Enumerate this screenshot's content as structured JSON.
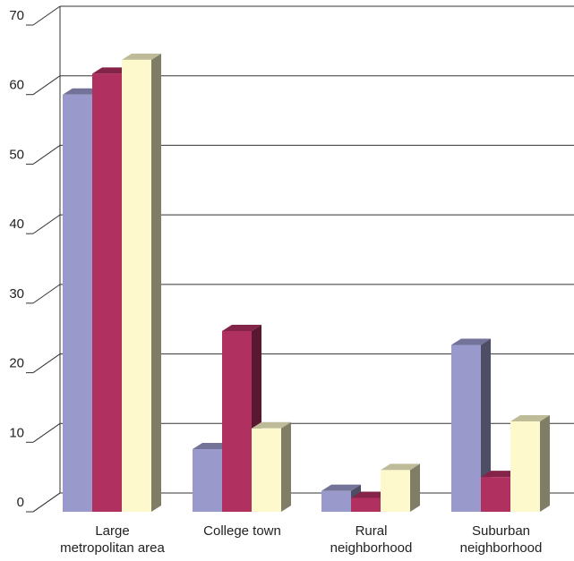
{
  "chart_data": {
    "type": "bar",
    "title": "",
    "xlabel": "",
    "ylabel": "",
    "categories": [
      [
        "Large",
        "metropolitan area"
      ],
      [
        "College town"
      ],
      [
        "Rural",
        "neighborhood"
      ],
      [
        "Suburban",
        "neighborhood"
      ]
    ],
    "series": [
      {
        "values": [
          60,
          9,
          3,
          24
        ],
        "color": "#9999cc"
      },
      {
        "values": [
          63,
          26,
          2,
          5
        ],
        "color": "#b03060"
      },
      {
        "values": [
          65,
          12,
          6,
          13
        ],
        "color": "#fdf9cc"
      }
    ],
    "ylim": [
      0,
      70
    ],
    "yticks": [
      "0",
      "10",
      "20",
      "30",
      "40",
      "50",
      "60",
      "70"
    ],
    "grid": true,
    "style": "3d"
  }
}
